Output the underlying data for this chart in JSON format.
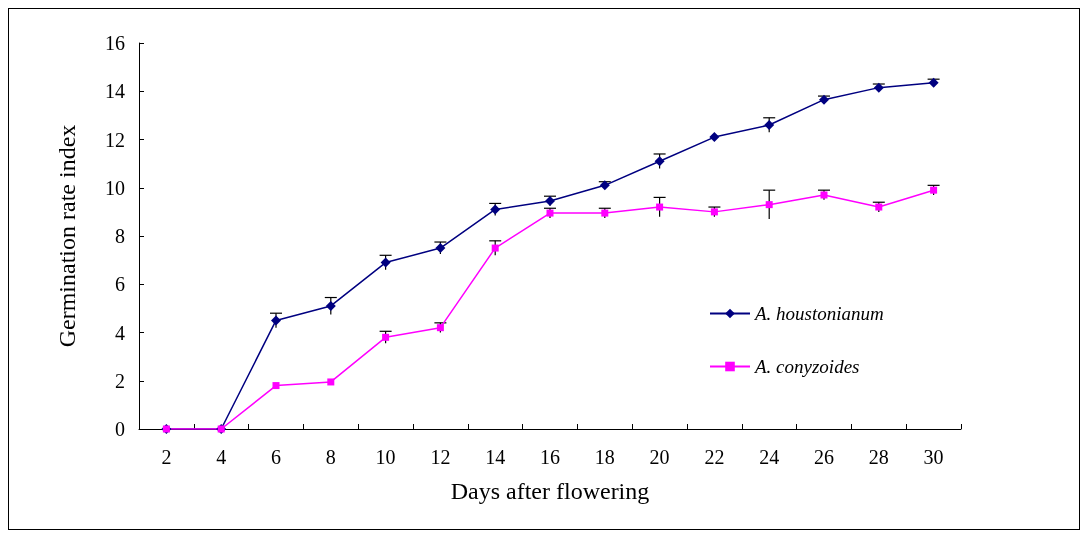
{
  "chart_data": {
    "type": "line",
    "xlabel": "Days after flowering",
    "ylabel": "Germination rate index",
    "categories": [
      "2",
      "4",
      "6",
      "8",
      "10",
      "12",
      "14",
      "16",
      "18",
      "20",
      "22",
      "24",
      "26",
      "28",
      "30"
    ],
    "series": [
      {
        "name": "A. houstonianum",
        "color": "#000080",
        "marker": "diamond",
        "values": [
          0,
          0,
          4.5,
          5.1,
          6.9,
          7.5,
          9.1,
          9.45,
          10.1,
          11.1,
          12.1,
          12.6,
          13.65,
          14.15,
          14.35
        ],
        "errors": [
          null,
          null,
          0.3,
          0.35,
          0.3,
          0.25,
          0.25,
          0.2,
          0.15,
          0.3,
          null,
          0.3,
          0.15,
          0.15,
          0.15
        ]
      },
      {
        "name": "A. conyzoides",
        "color": "#ff00ff",
        "marker": "square",
        "values": [
          0,
          0,
          1.8,
          1.95,
          3.8,
          4.2,
          7.5,
          8.95,
          8.95,
          9.2,
          9.0,
          9.3,
          9.7,
          9.2,
          9.9
        ],
        "errors": [
          null,
          null,
          null,
          null,
          0.25,
          0.2,
          0.3,
          0.2,
          0.2,
          0.4,
          0.2,
          0.6,
          0.2,
          0.2,
          0.2
        ]
      }
    ],
    "ylim": [
      0,
      16
    ],
    "yticks": [
      0,
      2,
      4,
      6,
      8,
      10,
      12,
      14,
      16
    ],
    "grid": false,
    "legend": "right",
    "line_style": "solid"
  }
}
